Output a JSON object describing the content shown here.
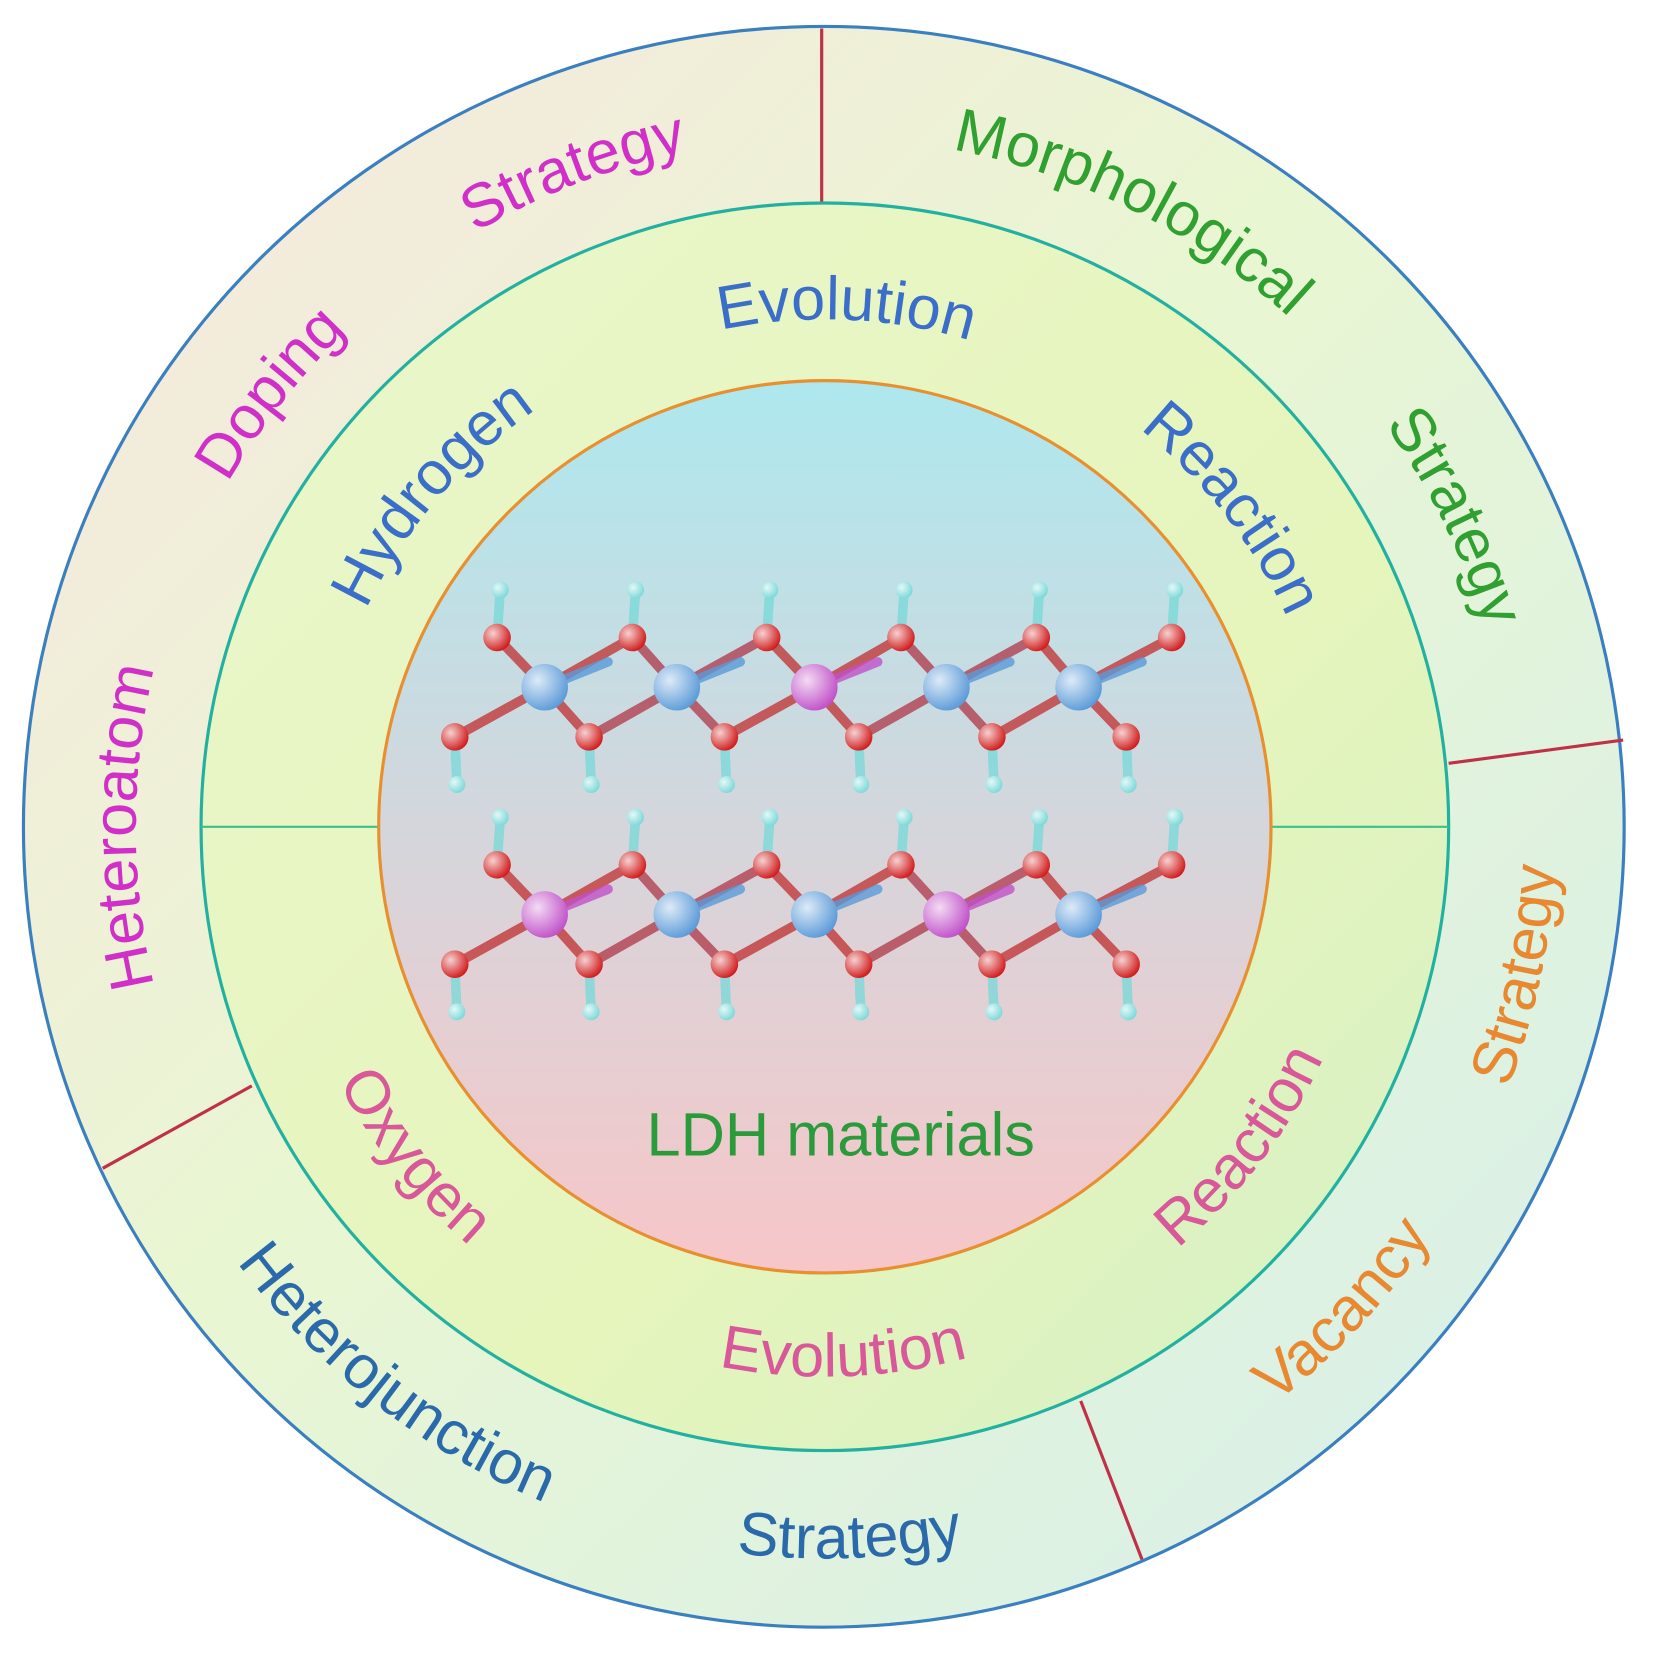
{
  "center_label": {
    "text": "LDH materials",
    "color": "#2a9a3a"
  },
  "middle_ring": {
    "upper": {
      "words": [
        "Hydrogen",
        "Evolution",
        "Reaction"
      ],
      "color": "#3a6ec8"
    },
    "lower": {
      "words": [
        "Oxygen",
        "Evolution",
        "Reaction"
      ],
      "color": "#d8589a"
    }
  },
  "outer_ring": {
    "segments": [
      {
        "name": "heteroatom-doping",
        "words": [
          "Heteroatom",
          "Doping",
          "Strategy"
        ],
        "color": "#d030c8"
      },
      {
        "name": "morphological",
        "words": [
          "Morphological",
          "Strategy"
        ],
        "color": "#30a030"
      },
      {
        "name": "vacancy",
        "words": [
          "Vacancy",
          "Strategy"
        ],
        "color": "#e88830"
      },
      {
        "name": "heterojunction",
        "words": [
          "Heterojunction",
          "Strategy"
        ],
        "color": "#2a6aaa"
      }
    ]
  },
  "colors": {
    "outer_stroke": "#3a7fc0",
    "middle_stroke": "#22b0a0",
    "inner_stroke": "#e89030",
    "divider": "#c03048",
    "oxygen": "#d01818",
    "hydrogen": "#7ad8d8",
    "metal_blue": "#5a9ad8",
    "metal_purple": "#c050c8"
  },
  "structure": {
    "layers": [
      [
        "metal_blue",
        "metal_blue",
        "metal_purple",
        "metal_blue",
        "metal_blue"
      ],
      [
        "metal_purple",
        "metal_blue",
        "metal_blue",
        "metal_purple",
        "metal_blue"
      ]
    ]
  }
}
